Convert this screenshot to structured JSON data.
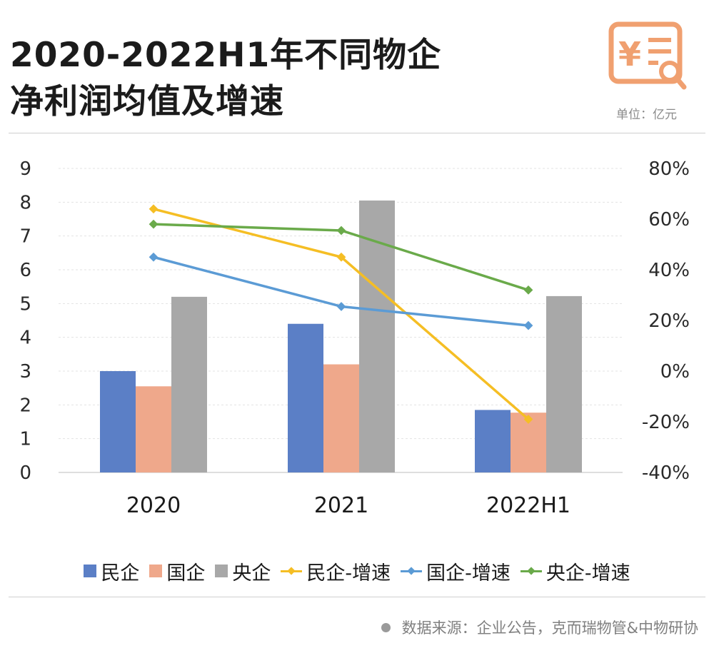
{
  "header": {
    "title_line1": "2020-2022H1年不同物企",
    "title_line2": "净利润均值及增速",
    "unit": "单位：亿元",
    "icon": "yuan-receipt-search-icon"
  },
  "footer": {
    "source": "数据来源：企业公告，克而瑞物管&中物研协"
  },
  "colors": {
    "private": "#5b7fc6",
    "state": "#efa88b",
    "central": "#a8a8a8",
    "private_growth": "#f5be24",
    "state_growth": "#5b9bd5",
    "central_growth": "#6aaa4a"
  },
  "chart_data": {
    "type": "bar",
    "categories": [
      "2020",
      "2021",
      "2022H1"
    ],
    "series": [
      {
        "name": "民企",
        "kind": "bar",
        "axis": "left",
        "values": [
          3.0,
          4.4,
          1.85
        ]
      },
      {
        "name": "国企",
        "kind": "bar",
        "axis": "left",
        "values": [
          2.55,
          3.2,
          1.77
        ]
      },
      {
        "name": "央企",
        "kind": "bar",
        "axis": "left",
        "values": [
          5.2,
          8.05,
          5.22
        ]
      },
      {
        "name": "民企-增速",
        "kind": "line",
        "axis": "right",
        "values": [
          64,
          45,
          -19
        ]
      },
      {
        "name": "国企-增速",
        "kind": "line",
        "axis": "right",
        "values": [
          45,
          25.5,
          18
        ]
      },
      {
        "name": "央企-增速",
        "kind": "line",
        "axis": "right",
        "values": [
          58,
          55.5,
          32
        ]
      }
    ],
    "y_left": {
      "min": 0,
      "max": 9,
      "ticks": [
        "0",
        "1",
        "2",
        "3",
        "4",
        "5",
        "6",
        "7",
        "8",
        "9"
      ]
    },
    "y_right": {
      "min": -40,
      "max": 80,
      "ticks": [
        "-40%",
        "-20%",
        "0%",
        "20%",
        "40%",
        "60%",
        "80%"
      ]
    },
    "grid": true,
    "legend_position": "bottom"
  }
}
